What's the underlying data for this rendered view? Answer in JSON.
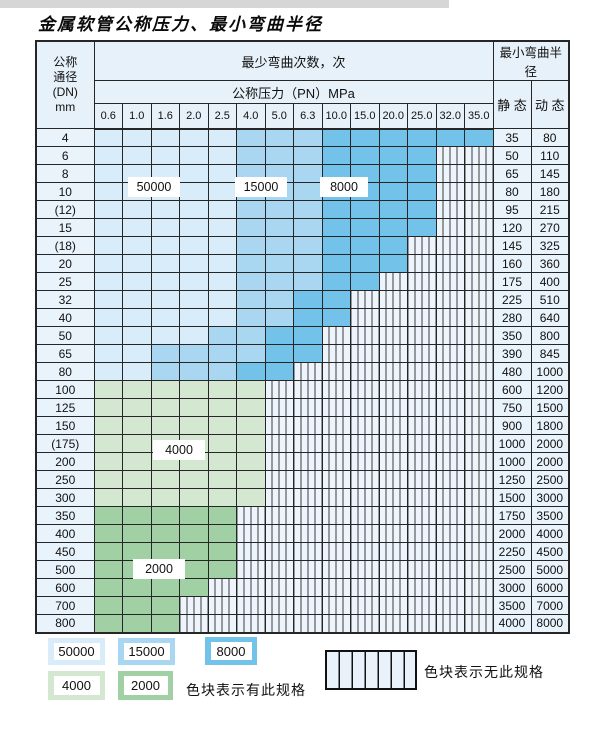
{
  "page": {
    "title": "金属软管公称压力、最小弯曲半径"
  },
  "table": {
    "dn_header_lines": [
      "公称",
      "通径",
      "(DN)",
      "mm"
    ],
    "cycles_header": "最少弯曲次数，次",
    "pressure_header": "公称压力（PN）MPa",
    "radius_header": "最小弯曲半径",
    "static_label": "静 态",
    "dynamic_label": "动 态",
    "pressure_columns": [
      "0.6",
      "1.0",
      "1.6",
      "2.0",
      "2.5",
      "4.0",
      "5.0",
      "6.3",
      "10.0",
      "15.0",
      "20.0",
      "25.0",
      "32.0",
      "35.0"
    ],
    "cell_code_meaning": {
      "L": "50000",
      "M": "15000",
      "D": "8000",
      "G": "4000",
      "g": "2000",
      "X": "无此规格"
    },
    "rows": [
      {
        "dn": "4",
        "cells": "LLLLLMMMDDDDDD",
        "static": "35",
        "dynamic": "80"
      },
      {
        "dn": "6",
        "cells": "LLLLLMMMDDDDXX",
        "static": "50",
        "dynamic": "110"
      },
      {
        "dn": "8",
        "cells": "LLLLLMMMDDDDXX",
        "static": "65",
        "dynamic": "145"
      },
      {
        "dn": "10",
        "cells": "LLLLLMMMDDDDXX",
        "static": "80",
        "dynamic": "180"
      },
      {
        "dn": "(12)",
        "cells": "LLLLLMMMDDDDXX",
        "static": "95",
        "dynamic": "215"
      },
      {
        "dn": "15",
        "cells": "LLLLLMMMDDDDXX",
        "static": "120",
        "dynamic": "270"
      },
      {
        "dn": "(18)",
        "cells": "LLLLLMMMDDDXXX",
        "static": "145",
        "dynamic": "325"
      },
      {
        "dn": "20",
        "cells": "LLLLLMMMDDDXXX",
        "static": "160",
        "dynamic": "360"
      },
      {
        "dn": "25",
        "cells": "LLLLLMMMDDXXXX",
        "static": "175",
        "dynamic": "400"
      },
      {
        "dn": "32",
        "cells": "LLLLLMMDDXXXXX",
        "static": "225",
        "dynamic": "510"
      },
      {
        "dn": "40",
        "cells": "LLLLLMMDDXXXXX",
        "static": "280",
        "dynamic": "640"
      },
      {
        "dn": "50",
        "cells": "LLLLMMDDXXXXXX",
        "static": "350",
        "dynamic": "800"
      },
      {
        "dn": "65",
        "cells": "LLMMMMDDXXXXXX",
        "static": "390",
        "dynamic": "845"
      },
      {
        "dn": "80",
        "cells": "LLMMMDDXXXXXXX",
        "static": "480",
        "dynamic": "1000"
      },
      {
        "dn": "100",
        "cells": "GGGGGGXXXXXXXX",
        "static": "600",
        "dynamic": "1200"
      },
      {
        "dn": "125",
        "cells": "GGGGGGXXXXXXXX",
        "static": "750",
        "dynamic": "1500"
      },
      {
        "dn": "150",
        "cells": "GGGGGGXXXXXXXX",
        "static": "900",
        "dynamic": "1800"
      },
      {
        "dn": "(175)",
        "cells": "GGGGGGXXXXXXXX",
        "static": "1000",
        "dynamic": "2000"
      },
      {
        "dn": "200",
        "cells": "GGGGGGXXXXXXXX",
        "static": "1000",
        "dynamic": "2000"
      },
      {
        "dn": "250",
        "cells": "GGGGGGXXXXXXXX",
        "static": "1250",
        "dynamic": "2500"
      },
      {
        "dn": "300",
        "cells": "GGGGGGXXXXXXXX",
        "static": "1500",
        "dynamic": "3000"
      },
      {
        "dn": "350",
        "cells": "gggggXXXXXXXXX",
        "static": "1750",
        "dynamic": "3500"
      },
      {
        "dn": "400",
        "cells": "gggggXXXXXXXXX",
        "static": "2000",
        "dynamic": "4000"
      },
      {
        "dn": "450",
        "cells": "gggggXXXXXXXXX",
        "static": "2250",
        "dynamic": "4500"
      },
      {
        "dn": "500",
        "cells": "gggggXXXXXXXXX",
        "static": "2500",
        "dynamic": "5000"
      },
      {
        "dn": "600",
        "cells": "ggggXXXXXXXXXX",
        "static": "3000",
        "dynamic": "6000"
      },
      {
        "dn": "700",
        "cells": "gggXXXXXXXXXXX",
        "static": "3500",
        "dynamic": "7000"
      },
      {
        "dn": "800",
        "cells": "gggXXXXXXXXXXX",
        "static": "4000",
        "dynamic": "8000"
      }
    ]
  },
  "region_labels": [
    {
      "text": "50000"
    },
    {
      "text": "15000"
    },
    {
      "text": "8000"
    },
    {
      "text": "4000"
    },
    {
      "text": "2000"
    }
  ],
  "legend": {
    "items": [
      {
        "label": "50000",
        "color": "#d9ecf9"
      },
      {
        "label": "15000",
        "color": "#a9d6f0"
      },
      {
        "label": "8000",
        "color": "#72c2ea"
      },
      {
        "label": "4000",
        "color": "#d4e7d0"
      },
      {
        "label": "2000",
        "color": "#a0d0a4"
      }
    ],
    "has_spec_text": "色块表示有此规格",
    "no_spec_text": "色块表示无此规格"
  },
  "colors": {
    "c50000": "#d9ecf9",
    "c15000": "#a9d6f0",
    "c8000": "#72c2ea",
    "c4000": "#d4e7d0",
    "c2000": "#a0d0a4",
    "striped_bg": "#eef4fb",
    "header_bg": "#e7f1f9",
    "border": "#262626"
  }
}
